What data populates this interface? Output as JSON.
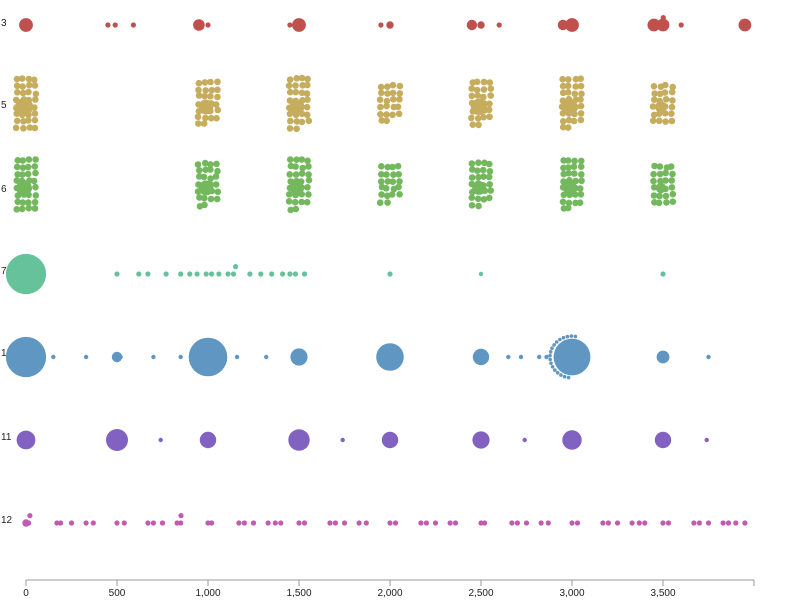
{
  "chart_data": {
    "type": "scatter",
    "title": "",
    "xlabel": "",
    "ylabel": "",
    "xlim": [
      0,
      4000
    ],
    "x_ticks": [
      {
        "value": 0,
        "label": "0"
      },
      {
        "value": 500,
        "label": "500"
      },
      {
        "value": 1000,
        "label": "1,000"
      },
      {
        "value": 1500,
        "label": "1,500"
      },
      {
        "value": 2000,
        "label": "2,000"
      },
      {
        "value": 2500,
        "label": "2,500"
      },
      {
        "value": 3000,
        "label": "3,000"
      },
      {
        "value": 3500,
        "label": "3,500"
      }
    ],
    "grid": false,
    "legend": "none",
    "series": [
      {
        "label": "3",
        "color": "#c0504d",
        "points": [
          {
            "x": 0,
            "size": 7
          },
          {
            "x": 450,
            "size": 1
          },
          {
            "x": 490,
            "size": 1
          },
          {
            "x": 590,
            "size": 1
          },
          {
            "x": 950,
            "size": 5
          },
          {
            "x": 1000,
            "size": 1
          },
          {
            "x": 1450,
            "size": 1
          },
          {
            "x": 1500,
            "size": 7
          },
          {
            "x": 1950,
            "size": 1
          },
          {
            "x": 2000,
            "size": 2
          },
          {
            "x": 2450,
            "size": 4
          },
          {
            "x": 2500,
            "size": 2
          },
          {
            "x": 2600,
            "size": 1
          },
          {
            "x": 2950,
            "size": 4
          },
          {
            "x": 3000,
            "size": 7
          },
          {
            "x": 3450,
            "size": 6
          },
          {
            "x": 3500,
            "size": 6
          },
          {
            "x": 3510,
            "size": 1
          },
          {
            "x": 3600,
            "size": 1
          },
          {
            "x": 3950,
            "size": 6
          }
        ]
      },
      {
        "label": "5",
        "color": "#c6ad5d",
        "groups": [
          {
            "x": 0,
            "big": 12,
            "small": 32
          },
          {
            "x": 1000,
            "big": 8,
            "small": 26
          },
          {
            "x": 1500,
            "big": 8,
            "small": 30
          },
          {
            "x": 2000,
            "big": 0,
            "small": 22
          },
          {
            "x": 2500,
            "big": 10,
            "small": 26
          },
          {
            "x": 3000,
            "big": 9,
            "small": 30
          },
          {
            "x": 3500,
            "big": 5,
            "small": 24
          }
        ]
      },
      {
        "label": "6",
        "color": "#74b85e",
        "groups": [
          {
            "x": 0,
            "big": 9,
            "small": 32
          },
          {
            "x": 1000,
            "big": 8,
            "small": 26
          },
          {
            "x": 1500,
            "big": 7,
            "small": 30
          },
          {
            "x": 2000,
            "big": 0,
            "small": 22
          },
          {
            "x": 2500,
            "big": 7,
            "small": 26
          },
          {
            "x": 3000,
            "big": 7,
            "small": 30
          },
          {
            "x": 3500,
            "big": 4,
            "small": 24
          }
        ]
      },
      {
        "label": "7",
        "color": "#66c29a",
        "points": [
          {
            "x": 0,
            "size": 60
          },
          {
            "x": 5,
            "size": 0.5
          },
          {
            "x": 500,
            "size": 1
          },
          {
            "x": 620,
            "size": 1
          },
          {
            "x": 670,
            "size": 1
          },
          {
            "x": 770,
            "size": 1
          },
          {
            "x": 850,
            "size": 1
          },
          {
            "x": 900,
            "size": 1
          },
          {
            "x": 940,
            "size": 1
          },
          {
            "x": 990,
            "size": 1
          },
          {
            "x": 1020,
            "size": 1
          },
          {
            "x": 1060,
            "size": 1
          },
          {
            "x": 1110,
            "size": 1
          },
          {
            "x": 1140,
            "size": 1
          },
          {
            "x": 1160,
            "size": 1
          },
          {
            "x": 1230,
            "size": 1
          },
          {
            "x": 1290,
            "size": 1
          },
          {
            "x": 1350,
            "size": 1
          },
          {
            "x": 1410,
            "size": 1
          },
          {
            "x": 1450,
            "size": 1
          },
          {
            "x": 1480,
            "size": 1
          },
          {
            "x": 1530,
            "size": 1
          },
          {
            "x": 2000,
            "size": 1
          },
          {
            "x": 2500,
            "size": 0.6
          },
          {
            "x": 3500,
            "size": 1
          }
        ]
      },
      {
        "label": "10",
        "color": "#5f97c2",
        "points": [
          {
            "x": 0,
            "size": 60
          },
          {
            "x": 150,
            "size": 0.6
          },
          {
            "x": 330,
            "size": 0.6
          },
          {
            "x": 500,
            "size": 4
          },
          {
            "x": 520,
            "size": 0.6
          },
          {
            "x": 700,
            "size": 0.6
          },
          {
            "x": 850,
            "size": 0.6
          },
          {
            "x": 1000,
            "size": 55
          },
          {
            "x": 1000,
            "size": 0.6
          },
          {
            "x": 1160,
            "size": 0.6
          },
          {
            "x": 1320,
            "size": 0.6
          },
          {
            "x": 1500,
            "size": 11
          },
          {
            "x": 1950,
            "size": 0.6
          },
          {
            "x": 2000,
            "size": 28
          },
          {
            "x": 2500,
            "size": 10
          },
          {
            "x": 2650,
            "size": 0.6
          },
          {
            "x": 2720,
            "size": 0.6
          },
          {
            "x": 2820,
            "size": 0.6
          },
          {
            "x": 2860,
            "size": 0.6
          },
          {
            "x": 3000,
            "size": 50
          },
          {
            "x": 3500,
            "size": 6
          },
          {
            "x": 3750,
            "size": 0.6
          }
        ],
        "arc_count": 18,
        "arc_x": 3000
      },
      {
        "label": "11",
        "color": "#8262c0",
        "points": [
          {
            "x": 0,
            "size": 13
          },
          {
            "x": 500,
            "size": 18
          },
          {
            "x": 740,
            "size": 0.7
          },
          {
            "x": 1000,
            "size": 10
          },
          {
            "x": 1500,
            "size": 17
          },
          {
            "x": 1740,
            "size": 0.7
          },
          {
            "x": 2000,
            "size": 10
          },
          {
            "x": 2500,
            "size": 11
          },
          {
            "x": 2740,
            "size": 0.7
          },
          {
            "x": 3000,
            "size": 14
          },
          {
            "x": 3500,
            "size": 10
          },
          {
            "x": 3740,
            "size": 0.7
          }
        ]
      },
      {
        "label": "12",
        "color": "#c15bb0",
        "points": [
          {
            "x": 0,
            "size": 2
          },
          {
            "x": 15,
            "size": 1
          },
          {
            "x": 30,
            "size": 1
          },
          {
            "x": 170,
            "size": 1
          },
          {
            "x": 190,
            "size": 1
          },
          {
            "x": 250,
            "size": 1
          },
          {
            "x": 330,
            "size": 1
          },
          {
            "x": 370,
            "size": 1
          },
          {
            "x": 500,
            "size": 1
          },
          {
            "x": 540,
            "size": 1
          },
          {
            "x": 670,
            "size": 1
          },
          {
            "x": 700,
            "size": 1
          },
          {
            "x": 750,
            "size": 1
          },
          {
            "x": 830,
            "size": 1
          },
          {
            "x": 850,
            "size": 1
          },
          {
            "x": 860,
            "size": 1
          },
          {
            "x": 1000,
            "size": 1
          },
          {
            "x": 1020,
            "size": 1
          },
          {
            "x": 1170,
            "size": 1
          },
          {
            "x": 1200,
            "size": 1
          },
          {
            "x": 1250,
            "size": 1
          },
          {
            "x": 1330,
            "size": 1
          },
          {
            "x": 1370,
            "size": 1
          },
          {
            "x": 1400,
            "size": 1
          },
          {
            "x": 1500,
            "size": 1
          },
          {
            "x": 1530,
            "size": 1
          },
          {
            "x": 1670,
            "size": 1
          },
          {
            "x": 1700,
            "size": 1
          },
          {
            "x": 1750,
            "size": 1
          },
          {
            "x": 1830,
            "size": 1
          },
          {
            "x": 1870,
            "size": 1
          },
          {
            "x": 2000,
            "size": 1
          },
          {
            "x": 2030,
            "size": 1
          },
          {
            "x": 2170,
            "size": 1
          },
          {
            "x": 2200,
            "size": 1
          },
          {
            "x": 2250,
            "size": 1
          },
          {
            "x": 2330,
            "size": 1
          },
          {
            "x": 2360,
            "size": 1
          },
          {
            "x": 2500,
            "size": 1
          },
          {
            "x": 2520,
            "size": 1
          },
          {
            "x": 2670,
            "size": 1
          },
          {
            "x": 2700,
            "size": 1
          },
          {
            "x": 2750,
            "size": 1
          },
          {
            "x": 2830,
            "size": 1
          },
          {
            "x": 2870,
            "size": 1
          },
          {
            "x": 3000,
            "size": 1
          },
          {
            "x": 3030,
            "size": 1
          },
          {
            "x": 3170,
            "size": 1
          },
          {
            "x": 3200,
            "size": 1
          },
          {
            "x": 3250,
            "size": 1
          },
          {
            "x": 3330,
            "size": 1
          },
          {
            "x": 3370,
            "size": 1
          },
          {
            "x": 3400,
            "size": 1
          },
          {
            "x": 3500,
            "size": 1
          },
          {
            "x": 3530,
            "size": 1
          },
          {
            "x": 3670,
            "size": 1
          },
          {
            "x": 3700,
            "size": 1
          },
          {
            "x": 3750,
            "size": 1
          },
          {
            "x": 3830,
            "size": 1
          },
          {
            "x": 3860,
            "size": 1
          },
          {
            "x": 3900,
            "size": 1
          },
          {
            "x": 3950,
            "size": 1
          }
        ]
      }
    ]
  }
}
